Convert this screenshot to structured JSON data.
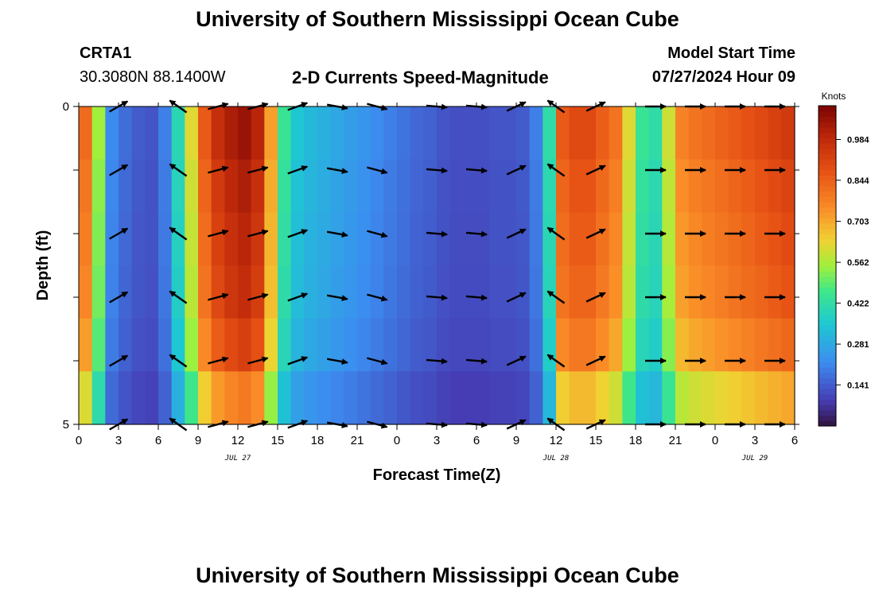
{
  "page": {
    "title": "University of Southern Mississippi Ocean Cube",
    "footer_title": "University of Southern Mississippi Ocean Cube",
    "station_id": "CRTA1",
    "coordinates": "30.3080N  88.1400W",
    "plot_title": "2-D Currents Speed-Magnitude",
    "model_start_label": "Model Start Time",
    "model_start_value": "07/27/2024 Hour 09"
  },
  "chart_data": {
    "type": "heatmap",
    "title": "2-D Currents Speed-Magnitude",
    "xlabel": "Forecast Time(Z)",
    "ylabel": "Depth (ft)",
    "xlim": [
      0,
      54
    ],
    "ylim": [
      0,
      5
    ],
    "x_ticks": [
      0,
      3,
      6,
      9,
      12,
      15,
      18,
      21,
      24,
      27,
      30,
      33,
      36,
      39,
      42,
      45,
      48,
      51,
      54
    ],
    "x_tick_labels": [
      "0",
      "3",
      "6",
      "9",
      "12",
      "15",
      "18",
      "21",
      "0",
      "3",
      "6",
      "9",
      "12",
      "15",
      "18",
      "21",
      "0",
      "3",
      "6"
    ],
    "y_tick_labels": [
      {
        "value": 0,
        "label": "0"
      },
      {
        "value": 5,
        "label": "5"
      }
    ],
    "date_labels": [
      {
        "x": 12,
        "label": "JUL 27"
      },
      {
        "x": 36,
        "label": "JUL 28"
      },
      {
        "x": 51,
        "label": "JUL 29"
      }
    ],
    "colorbar": {
      "title": "Knots",
      "min": 0.0,
      "max": 1.1,
      "ticks": [
        0.141,
        0.281,
        0.422,
        0.562,
        0.703,
        0.844,
        0.984
      ]
    },
    "speed_profile": {
      "hours": [
        0,
        1,
        2,
        3,
        4,
        5,
        6,
        7,
        8,
        9,
        10,
        11,
        12,
        13,
        14,
        15,
        16,
        17,
        18,
        19,
        20,
        21,
        22,
        23,
        24,
        25,
        26,
        27,
        28,
        29,
        30,
        31,
        32,
        33,
        34,
        35,
        36,
        37,
        38,
        39,
        40,
        41,
        42,
        43,
        44,
        45,
        46,
        47,
        48,
        49,
        50,
        51,
        52,
        53,
        54
      ],
      "surface_speed": [
        0.82,
        0.55,
        0.22,
        0.17,
        0.14,
        0.13,
        0.2,
        0.4,
        0.62,
        0.86,
        0.97,
        1.02,
        1.05,
        1.0,
        0.72,
        0.45,
        0.35,
        0.32,
        0.3,
        0.28,
        0.26,
        0.24,
        0.22,
        0.2,
        0.18,
        0.16,
        0.15,
        0.13,
        0.12,
        0.12,
        0.12,
        0.13,
        0.13,
        0.14,
        0.2,
        0.42,
        0.86,
        0.9,
        0.9,
        0.85,
        0.8,
        0.62,
        0.45,
        0.42,
        0.6,
        0.77,
        0.8,
        0.82,
        0.84,
        0.86,
        0.88,
        0.9,
        0.92,
        0.94,
        0.95
      ],
      "layer_factors": [
        1.0,
        0.97,
        0.95,
        0.93,
        0.88,
        0.75
      ]
    },
    "vectors": {
      "hours": [
        3,
        7.5,
        10.5,
        13.5,
        16.5,
        19.5,
        22.5,
        27,
        30,
        33,
        36,
        39,
        43.5,
        46.5,
        49.5,
        52.5
      ],
      "depths": [
        0,
        1,
        2,
        3,
        4,
        5
      ],
      "angles_deg": [
        null,
        145,
        15,
        15,
        20,
        -10,
        -15,
        -5,
        -5,
        25,
        145,
        25,
        0,
        0,
        0,
        0
      ],
      "direction_note": "angles are the direction the arrow points, degrees counter-clockwise from east"
    }
  }
}
